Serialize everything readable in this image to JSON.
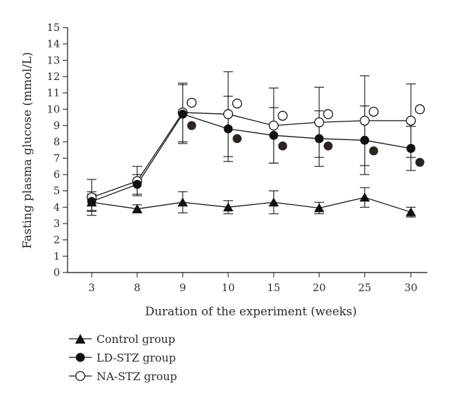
{
  "chart_data": {
    "type": "line",
    "xlabel": "Duration of the experiment (weeks)",
    "ylabel": "Fasting plasma glucose (mmol/L)",
    "categories": [
      "3",
      "8",
      "9",
      "10",
      "15",
      "20",
      "25",
      "30"
    ],
    "ylim": [
      0,
      15
    ],
    "yticks": [
      0,
      1,
      2,
      3,
      4,
      5,
      6,
      7,
      8,
      9,
      10,
      11,
      12,
      13,
      14,
      15
    ],
    "grid": false,
    "legend_position": "bottom-left",
    "series": [
      {
        "name": "Control group",
        "marker": "triangle",
        "values": [
          4.3,
          3.9,
          4.3,
          4.0,
          4.3,
          3.95,
          4.6,
          3.7
        ],
        "error": [
          0.5,
          0.25,
          0.65,
          0.4,
          0.7,
          0.35,
          0.6,
          0.3
        ],
        "color": "#111111"
      },
      {
        "name": "LD-STZ group",
        "marker": "filled-circle",
        "values": [
          4.35,
          5.4,
          9.7,
          8.8,
          8.4,
          8.2,
          8.1,
          7.6
        ],
        "error": [
          0.6,
          0.6,
          1.8,
          2.0,
          1.7,
          1.7,
          2.1,
          1.35
        ],
        "color": "#111111"
      },
      {
        "name": "NA-STZ group",
        "marker": "open-circle",
        "values": [
          4.6,
          5.6,
          9.8,
          9.7,
          9.0,
          9.2,
          9.3,
          9.3
        ],
        "error": [
          1.1,
          0.9,
          1.8,
          2.6,
          2.3,
          2.15,
          2.75,
          2.25
        ],
        "color": "#111111"
      }
    ],
    "offset_markers": [
      {
        "name": "LD-STZ group",
        "marker": "filled-circle",
        "color": "#2b2522",
        "values": [
          null,
          null,
          9.0,
          8.2,
          7.75,
          7.75,
          7.45,
          6.75
        ]
      },
      {
        "name": "NA-STZ group",
        "marker": "open-circle",
        "color": "#111111",
        "values": [
          null,
          null,
          10.4,
          10.35,
          9.6,
          9.7,
          9.85,
          10.0
        ]
      }
    ]
  }
}
